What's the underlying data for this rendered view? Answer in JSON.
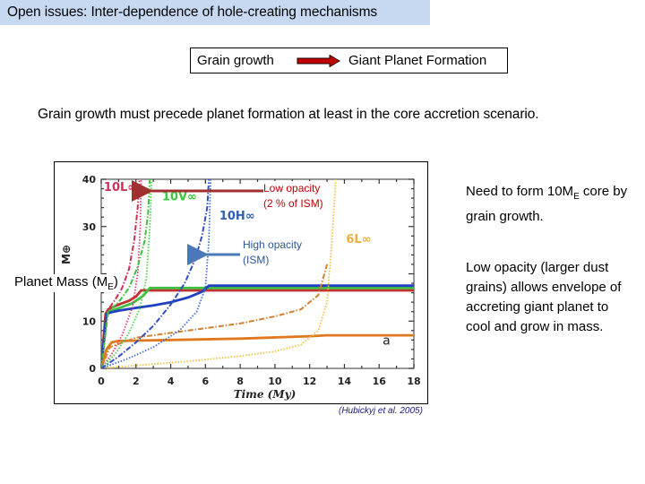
{
  "slide": {
    "title": "Open issues: Inter-dependence of hole-creating mechanisms",
    "flow": {
      "from": "Grain growth",
      "to": "Giant Planet Formation",
      "arrow_color": "#c00000"
    },
    "statement": "Grain growth must precede planet formation at least in the core accretion scenario.",
    "y_axis_label": "Planet Mass (M",
    "y_axis_label_sub": "E",
    "y_axis_label_end": ")",
    "annotations": {
      "low_opacity_line1": "Low opacity",
      "low_opacity_line2": "(2 % of ISM)",
      "high_opacity_line1": "High opacity",
      "high_opacity_line2": "(ISM)"
    },
    "side_notes": {
      "note1_pre": "Need to form 10M",
      "note1_sub": "E",
      "note1_post": " core by grain growth.",
      "note2": "Low opacity (larger dust grains) allows envelope of accreting giant planet to cool and grow in mass."
    },
    "citation": "(Hubickyj et al. 2005)"
  },
  "chart_data": {
    "type": "line",
    "title": "",
    "xlabel": "Time (My)",
    "ylabel": "M⊕",
    "xlim": [
      0,
      18
    ],
    "ylim": [
      0,
      40
    ],
    "x_ticks": [
      0,
      2,
      4,
      6,
      8,
      10,
      12,
      14,
      16,
      18
    ],
    "y_ticks": [
      0,
      10,
      30,
      40
    ],
    "panel_label": "a",
    "curve_labels": [
      {
        "text": "10L∞",
        "color": "#d0305a",
        "x": 0.15,
        "y": 37.5
      },
      {
        "text": "10V∞",
        "color": "#3cc83c",
        "x": 3.5,
        "y": 35.5
      },
      {
        "text": "10H∞",
        "color": "#3060b0",
        "x": 6.8,
        "y": 31.5
      },
      {
        "text": "6L∞",
        "color": "#e8b040",
        "x": 14.1,
        "y": 26.5
      }
    ],
    "series": [
      {
        "name": "10L solid (core)",
        "color": "#c03030",
        "style": "solid",
        "x": [
          0,
          0.25,
          0.4,
          1.0,
          1.6,
          2.0,
          2.3,
          18
        ],
        "y": [
          0,
          11.5,
          12.5,
          13.5,
          14.3,
          15.2,
          16.5,
          16.5
        ]
      },
      {
        "name": "10V solid (core)",
        "color": "#40c040",
        "style": "solid",
        "x": [
          0,
          0.3,
          0.45,
          1.0,
          1.8,
          2.4,
          2.8,
          18
        ],
        "y": [
          0,
          11.5,
          12.0,
          12.7,
          13.8,
          15.3,
          17.0,
          17.0
        ]
      },
      {
        "name": "10H solid (core)",
        "color": "#2040c0",
        "style": "solid",
        "x": [
          0,
          0.3,
          0.5,
          1.0,
          2.0,
          3.0,
          4.0,
          5.0,
          5.8,
          6.2,
          18
        ],
        "y": [
          0,
          11.5,
          11.8,
          12.2,
          12.8,
          13.3,
          14.0,
          15.0,
          16.2,
          17.5,
          17.5
        ]
      },
      {
        "name": "6L solid (core)",
        "color": "#e07820",
        "style": "solid",
        "x": [
          0,
          0.3,
          0.6,
          1.0,
          4.0,
          8.0,
          12.0,
          13.0,
          18
        ],
        "y": [
          0,
          4.0,
          5.5,
          5.8,
          6.0,
          6.3,
          6.8,
          7.0,
          7.0
        ]
      },
      {
        "name": "6L dash-dot (envelope)",
        "color": "#d08030",
        "style": "dashdot",
        "x": [
          0,
          0.5,
          2.0,
          4.0,
          6.0,
          8.0,
          10.0,
          11.5,
          12.5,
          13.0
        ],
        "y": [
          0,
          4.5,
          6.5,
          7.5,
          8.5,
          9.5,
          11.0,
          12.5,
          15.5,
          22.0
        ]
      },
      {
        "name": "6L dotted (total)",
        "color": "#f0c040",
        "style": "dotted",
        "x": [
          0,
          2.0,
          5.0,
          8.0,
          10.0,
          11.5,
          12.5,
          13.0,
          13.3,
          13.5
        ],
        "y": [
          0,
          0.6,
          1.5,
          2.6,
          3.6,
          5.0,
          8.0,
          14.0,
          28.0,
          40.0
        ]
      },
      {
        "name": "10L dash-dot (envelope)",
        "color": "#d03050",
        "style": "dashdot",
        "x": [
          0,
          0.4,
          0.8,
          1.2,
          1.6,
          1.9,
          2.1,
          2.2
        ],
        "y": [
          0,
          12.5,
          14.5,
          17.0,
          21.0,
          27.0,
          34.0,
          40.0
        ]
      },
      {
        "name": "10L dotted (total)",
        "color": "#e04070",
        "style": "dotted",
        "x": [
          0,
          0.6,
          1.2,
          1.8,
          2.1,
          2.25,
          2.3
        ],
        "y": [
          0,
          3.0,
          7.0,
          13.0,
          20.0,
          30.0,
          40.0
        ]
      },
      {
        "name": "10V dash-dot (envelope)",
        "color": "#40c040",
        "style": "dashdot",
        "x": [
          0,
          0.4,
          1.0,
          1.6,
          2.1,
          2.5,
          2.7,
          2.8
        ],
        "y": [
          0,
          12.0,
          14.0,
          17.0,
          21.5,
          27.0,
          33.0,
          40.0
        ]
      },
      {
        "name": "10V dotted (total)",
        "color": "#50d050",
        "style": "dotted",
        "x": [
          0,
          0.8,
          1.6,
          2.2,
          2.6,
          2.8,
          2.9
        ],
        "y": [
          0,
          3.0,
          7.5,
          12.5,
          19.0,
          30.0,
          40.0
        ]
      },
      {
        "name": "10H dash-dot (envelope)",
        "color": "#3050c0",
        "style": "dashdot",
        "x": [
          0,
          1.0,
          2.0,
          3.0,
          4.0,
          4.8,
          5.4,
          5.8,
          6.1,
          6.2
        ],
        "y": [
          0,
          2.5,
          5.5,
          9.0,
          13.5,
          18.0,
          23.0,
          28.0,
          34.0,
          40.0
        ]
      },
      {
        "name": "10H dotted (total)",
        "color": "#4070d0",
        "style": "dotted",
        "x": [
          0,
          1.5,
          3.0,
          4.5,
          5.5,
          6.0,
          6.2,
          6.3
        ],
        "y": [
          0,
          2.0,
          4.5,
          8.0,
          12.0,
          17.0,
          27.0,
          40.0
        ]
      }
    ]
  }
}
